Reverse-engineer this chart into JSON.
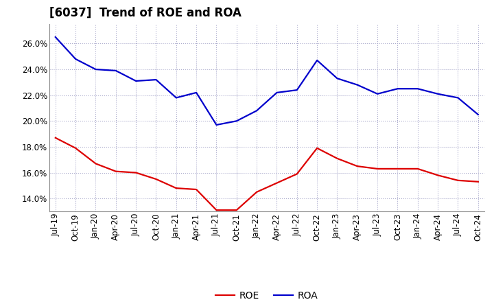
{
  "title": "[6037]  Trend of ROE and ROA",
  "x_labels": [
    "Jul-19",
    "Oct-19",
    "Jan-20",
    "Apr-20",
    "Jul-20",
    "Oct-20",
    "Jan-21",
    "Apr-21",
    "Jul-21",
    "Oct-21",
    "Jan-22",
    "Apr-22",
    "Jul-22",
    "Oct-22",
    "Jan-23",
    "Apr-23",
    "Jul-23",
    "Oct-23",
    "Jan-24",
    "Apr-24",
    "Jul-24",
    "Oct-24"
  ],
  "ROE": [
    18.7,
    17.9,
    16.7,
    16.1,
    16.0,
    15.5,
    14.8,
    14.7,
    13.1,
    13.1,
    14.5,
    15.2,
    15.9,
    17.9,
    17.1,
    16.5,
    16.3,
    16.3,
    16.3,
    15.8,
    15.4,
    15.3
  ],
  "ROA": [
    26.5,
    24.8,
    24.0,
    23.9,
    23.1,
    23.2,
    21.8,
    22.2,
    19.7,
    20.0,
    20.8,
    22.2,
    22.4,
    24.7,
    23.3,
    22.8,
    22.1,
    22.5,
    22.5,
    22.1,
    21.8,
    20.5
  ],
  "ROE_color": "#dd0000",
  "ROA_color": "#0000cc",
  "bg_color": "#ffffff",
  "grid_color": "#aaaacc",
  "ylim": [
    13.0,
    27.5
  ],
  "yticks": [
    14.0,
    16.0,
    18.0,
    20.0,
    22.0,
    24.0,
    26.0
  ],
  "title_fontsize": 12,
  "legend_fontsize": 10,
  "tick_fontsize": 8.5
}
